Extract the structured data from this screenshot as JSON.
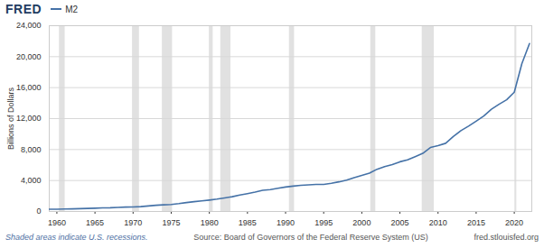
{
  "chart_data": {
    "type": "line",
    "title": "FRED",
    "y_label": "Billions of Dollars",
    "notes": "Shaded areas indicate U.S. recessions.",
    "source": "Source: Board of Governors of the Federal Reserve System (US)",
    "site": "fred.stlouisfed.org",
    "legend": "top-left",
    "grid": true,
    "x": [
      1959,
      1960,
      1961,
      1962,
      1963,
      1964,
      1965,
      1966,
      1967,
      1968,
      1969,
      1970,
      1971,
      1972,
      1973,
      1974,
      1975,
      1976,
      1977,
      1978,
      1979,
      1980,
      1981,
      1982,
      1983,
      1984,
      1985,
      1986,
      1987,
      1988,
      1989,
      1990,
      1991,
      1992,
      1993,
      1994,
      1995,
      1996,
      1997,
      1998,
      1999,
      2000,
      2001,
      2002,
      2003,
      2004,
      2005,
      2006,
      2007,
      2008,
      2009,
      2010,
      2011,
      2012,
      2013,
      2014,
      2015,
      2016,
      2017,
      2018,
      2019,
      2020,
      2021,
      2022
    ],
    "series": [
      {
        "name": "M2",
        "color": "#4572a7",
        "values": [
          286,
          298,
          312,
          335,
          363,
          393,
          424,
          459,
          480,
          525,
          567,
          588,
          627,
          710,
          802,
          855,
          903,
          1016,
          1152,
          1270,
          1366,
          1474,
          1600,
          1756,
          1906,
          2124,
          2309,
          2496,
          2732,
          2831,
          2994,
          3159,
          3279,
          3380,
          3434,
          3487,
          3502,
          3650,
          3826,
          4039,
          4379,
          4652,
          4946,
          5458,
          5805,
          6069,
          6422,
          6681,
          7082,
          7507,
          8263,
          8503,
          8810,
          9687,
          10442,
          11025,
          11666,
          12335,
          13209,
          13854,
          14434,
          15410,
          19100,
          21700
        ]
      }
    ],
    "shaded_regions": [
      [
        1960.33,
        1961.08
      ],
      [
        1969.92,
        1970.83
      ],
      [
        1973.83,
        1975.17
      ],
      [
        1980.0,
        1980.5
      ],
      [
        1981.5,
        1982.83
      ],
      [
        1990.5,
        1991.17
      ],
      [
        2001.17,
        2001.83
      ],
      [
        2007.92,
        2009.5
      ],
      [
        2020.08,
        2020.33
      ]
    ],
    "xlim": [
      1959,
      2022.3
    ],
    "xticks": [
      1960,
      1965,
      1970,
      1975,
      1980,
      1985,
      1990,
      1995,
      2000,
      2005,
      2010,
      2015,
      2020
    ],
    "ylim": [
      0,
      24000
    ],
    "yticks": [
      0,
      {
        "value": 4000,
        "label": "4,000"
      },
      {
        "value": 8000,
        "label": "8,000"
      },
      {
        "value": 12000,
        "label": "12,000"
      },
      {
        "value": 16000,
        "label": "16,000"
      },
      {
        "value": 20000,
        "label": "20,000"
      },
      {
        "value": 24000,
        "label": "24,000"
      }
    ]
  }
}
